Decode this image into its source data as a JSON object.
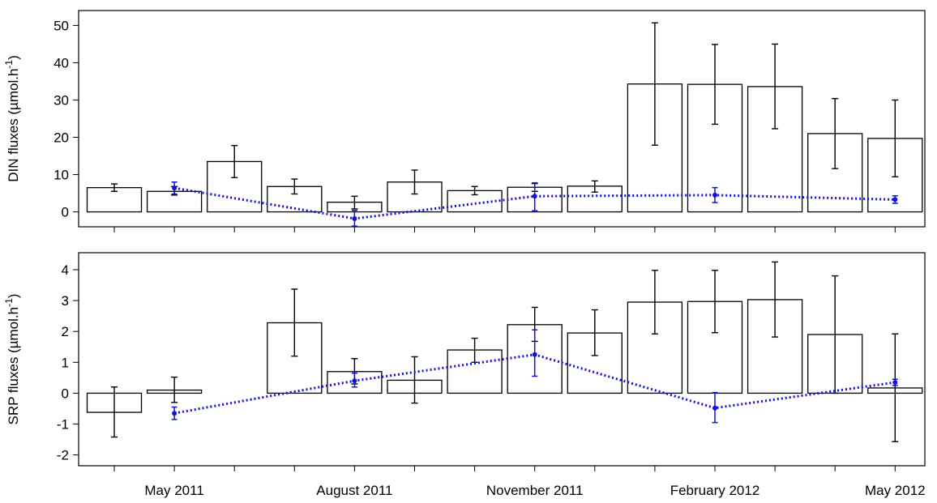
{
  "chart_data": [
    {
      "type": "bar",
      "ylabel": "DIN fluxes (µmol.h",
      "ylabel_sup": "-1",
      "ylabel_close": ")",
      "ylim": [
        -4,
        54
      ],
      "yticks": [
        0,
        10,
        20,
        30,
        40,
        50
      ],
      "grid": false,
      "bars": [
        {
          "value": 6.5,
          "err_low": 5.5,
          "err_high": 7.5
        },
        {
          "value": 5.5,
          "err_low": 4.5,
          "err_high": 6.8
        },
        {
          "value": 13.5,
          "err_low": 9.2,
          "err_high": 17.8
        },
        {
          "value": 6.8,
          "err_low": 4.8,
          "err_high": 8.8
        },
        {
          "value": 2.6,
          "err_low": 0.8,
          "err_high": 4.2
        },
        {
          "value": 8.0,
          "err_low": 4.8,
          "err_high": 11.2
        },
        {
          "value": 5.7,
          "err_low": 4.6,
          "err_high": 6.8
        },
        {
          "value": 6.6,
          "err_low": 5.5,
          "err_high": 7.6
        },
        {
          "value": 6.9,
          "err_low": 5.3,
          "err_high": 8.3
        },
        {
          "value": 34.3,
          "err_low": 17.9,
          "err_high": 50.7
        },
        {
          "value": 34.2,
          "err_low": 23.5,
          "err_high": 44.9
        },
        {
          "value": 33.6,
          "err_low": 22.3,
          "err_high": 45.0
        },
        {
          "value": 21.0,
          "err_low": 11.6,
          "err_high": 30.4
        },
        {
          "value": 19.7,
          "err_low": 9.4,
          "err_high": 30.0
        }
      ],
      "series": [
        {
          "points": [
            {
              "x": 2,
              "y": 6.4,
              "err_low": 4.8,
              "err_high": 8.0
            },
            {
              "x": 5,
              "y": -1.8,
              "err_low": -3.8,
              "err_high": 0.4
            },
            {
              "x": 8,
              "y": 4.2,
              "err_low": 0.3,
              "err_high": 7.8
            },
            {
              "x": 11,
              "y": 4.5,
              "err_low": 2.5,
              "err_high": 6.5
            },
            {
              "x": 14,
              "y": 3.3,
              "err_low": 2.3,
              "err_high": 4.3
            }
          ]
        }
      ]
    },
    {
      "type": "bar",
      "ylabel": "SRP fluxes (µmol.h",
      "ylabel_sup": "-1",
      "ylabel_close": ")",
      "ylim": [
        -2.35,
        4.55
      ],
      "yticks": [
        -2,
        -1,
        0,
        1,
        2,
        3,
        4
      ],
      "grid": false,
      "xtick_labels": [
        {
          "label": "May 2011",
          "at": 2
        },
        {
          "label": "August 2011",
          "at": 5
        },
        {
          "label": "November 2011",
          "at": 8
        },
        {
          "label": "February 2012",
          "at": 11
        },
        {
          "label": "May 2012",
          "at": 14
        }
      ],
      "bars": [
        {
          "value": -0.62,
          "err_low": -1.42,
          "err_high": 0.2
        },
        {
          "value": 0.1,
          "err_low": -0.3,
          "err_high": 0.52
        },
        null,
        {
          "value": 2.28,
          "err_low": 1.2,
          "err_high": 3.37
        },
        {
          "value": 0.7,
          "err_low": 0.3,
          "err_high": 1.12
        },
        {
          "value": 0.42,
          "err_low": -0.32,
          "err_high": 1.18
        },
        {
          "value": 1.4,
          "err_low": 1.0,
          "err_high": 1.78
        },
        {
          "value": 2.22,
          "err_low": 1.68,
          "err_high": 2.78
        },
        {
          "value": 1.95,
          "err_low": 1.22,
          "err_high": 2.7
        },
        {
          "value": 2.95,
          "err_low": 1.92,
          "err_high": 3.98
        },
        {
          "value": 2.97,
          "err_low": 1.96,
          "err_high": 3.98
        },
        {
          "value": 3.03,
          "err_low": 1.82,
          "err_high": 4.25
        },
        {
          "value": 1.9,
          "err_low": 0.0,
          "err_high": 3.8
        },
        {
          "value": 0.17,
          "err_low": -1.57,
          "err_high": 1.92
        }
      ],
      "series": [
        {
          "points": [
            {
              "x": 2,
              "y": -0.65,
              "err_low": -0.85,
              "err_high": -0.45
            },
            {
              "x": 5,
              "y": 0.4,
              "err_low": 0.2,
              "err_high": 0.65
            },
            {
              "x": 8,
              "y": 1.25,
              "err_low": 0.55,
              "err_high": 2.05
            },
            {
              "x": 11,
              "y": -0.48,
              "err_low": -0.95,
              "err_high": 0.02
            },
            {
              "x": 14,
              "y": 0.35,
              "err_low": 0.25,
              "err_high": 0.45
            }
          ]
        }
      ]
    }
  ],
  "colors": {
    "series_line": "#1111dd",
    "bars": "#000000"
  }
}
